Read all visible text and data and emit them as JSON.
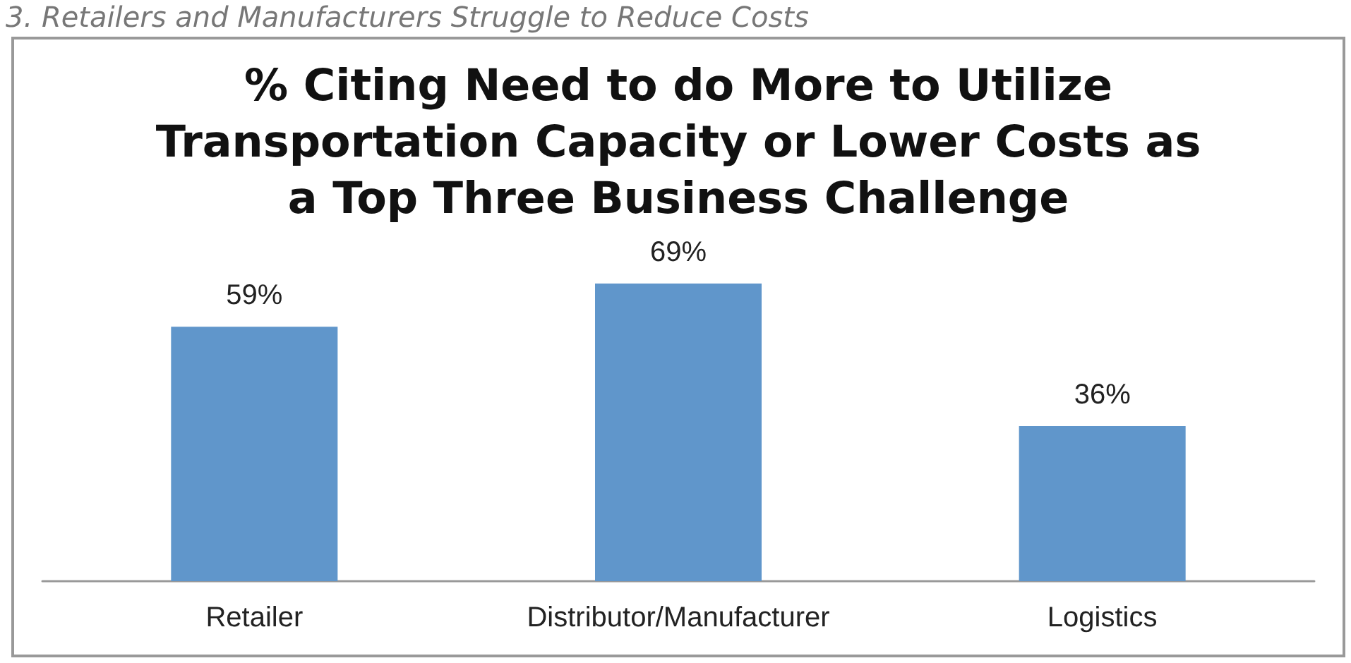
{
  "chart_data": {
    "type": "bar",
    "title": "% Citing Need to do More to Utilize\nTransportation Capacity or Lower Costs as\na Top Three Business Challenge",
    "annotations": [
      "3. Retailers and Manufacturers Struggle to Reduce Costs"
    ],
    "categories": [
      "Retailer",
      "Distributor/Manufacturer",
      "Logistics"
    ],
    "values": [
      59,
      69,
      36
    ],
    "value_labels": [
      "59%",
      "69%",
      "36%"
    ],
    "color": "#6096cb"
  }
}
